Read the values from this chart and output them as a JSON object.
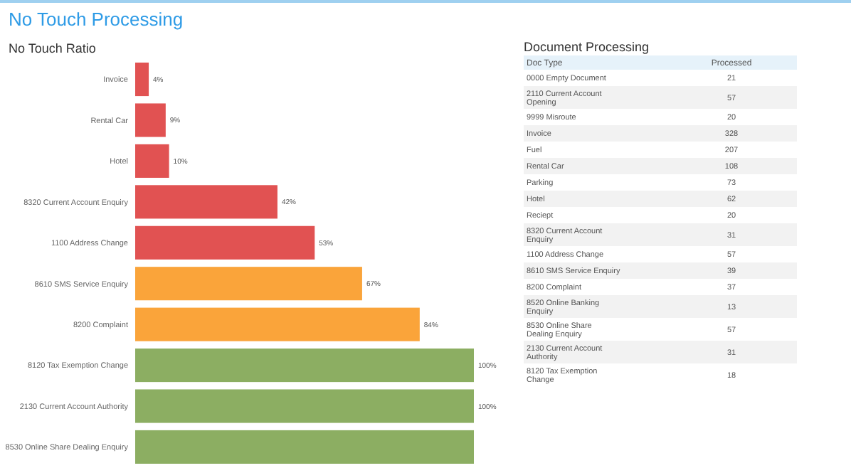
{
  "chart_data": [
    {
      "type": "bar",
      "orientation": "horizontal",
      "title": "No Touch Processing",
      "subtitle": "No Touch Ratio",
      "categories": [
        "Invoice",
        "Rental Car",
        "Hotel",
        "8320 Current Account Enquiry",
        "1100 Address Change",
        "8610 SMS Service Enquiry",
        "8200 Complaint",
        "8120 Tax Exemption Change",
        "2130 Current Account Authority",
        "8530 Online Share Dealing Enquiry"
      ],
      "values": [
        4,
        9,
        10,
        42,
        53,
        67,
        84,
        100,
        100,
        100
      ],
      "colors": [
        "#e15252",
        "#e15252",
        "#e15252",
        "#e15252",
        "#e15252",
        "#faa43a",
        "#faa43a",
        "#8cae62",
        "#8cae62",
        "#8cae62"
      ],
      "value_labels": [
        "4%",
        "9%",
        "10%",
        "42%",
        "53%",
        "67%",
        "84%",
        "100%",
        "100%",
        null
      ]
    },
    {
      "type": "other",
      "title": "Document Processing",
      "xlabel": "Doc Type",
      "ylabel": "Processed",
      "categories": [
        "0000 Empty Document",
        "2110 Current Account Opening",
        "9999 Misroute",
        "Invoice",
        "Fuel",
        "Rental Car",
        "Parking",
        "Hotel",
        "Reciept",
        "8320 Current Account Enquiry",
        "1100 Address Change",
        "8610 SMS Service Enquiry",
        "8200 Complaint",
        "8520 Online Banking Enquiry",
        "8530 Online Share Dealing Enquiry",
        "2130 Current Account Authority",
        "8120 Tax Exemption Change"
      ],
      "values": [
        21,
        57,
        20,
        328,
        207,
        108,
        73,
        62,
        20,
        31,
        57,
        39,
        37,
        13,
        57,
        31,
        18
      ],
      "data_labels": true
    }
  ]
}
